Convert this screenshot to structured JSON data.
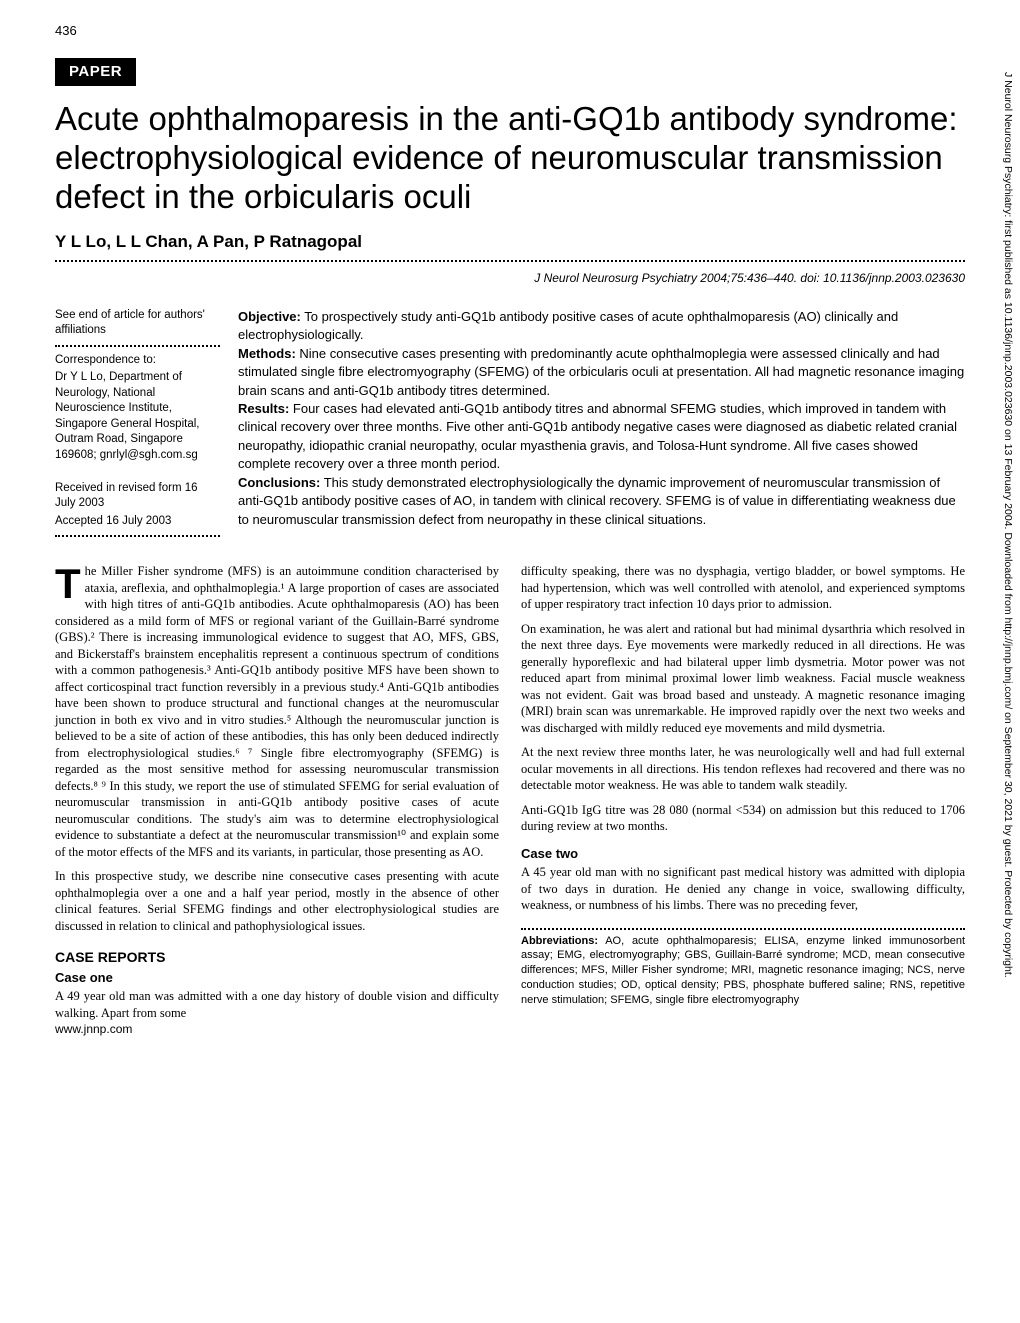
{
  "page_number": "436",
  "badge": "PAPER",
  "title": "Acute ophthalmoparesis in the anti-GQ1b antibody syndrome: electrophysiological evidence of neuromuscular transmission defect in the orbicularis oculi",
  "authors": "Y L Lo, L L Chan, A Pan, P Ratnagopal",
  "citation": "J Neurol Neurosurg Psychiatry 2004;75:436–440. doi: 10.1136/jnnp.2003.023630",
  "sidebar": {
    "affil_note": "See end of article for authors' affiliations",
    "correspondence_label": "Correspondence to:",
    "correspondence": "Dr Y L Lo, Department of Neurology, National Neuroscience Institute, Singapore General Hospital, Outram Road, Singapore 169608; gnrlyl@sgh.com.sg",
    "received": "Received in revised form 16 July 2003",
    "accepted": "Accepted 16 July 2003"
  },
  "abstract": {
    "objective_label": "Objective:",
    "objective": " To prospectively study anti-GQ1b antibody positive cases of acute ophthalmoparesis (AO) clinically and electrophysiologically.",
    "methods_label": "Methods:",
    "methods": " Nine consecutive cases presenting with predominantly acute ophthalmoplegia were assessed clinically and had stimulated single fibre electromyography (SFEMG) of the orbicularis oculi at presentation. All had magnetic resonance imaging brain scans and anti-GQ1b antibody titres determined.",
    "results_label": "Results:",
    "results": " Four cases had elevated anti-GQ1b antibody titres and abnormal SFEMG studies, which improved in tandem with clinical recovery over three months. Five other anti-GQ1b antibody negative cases were diagnosed as diabetic related cranial neuropathy, idiopathic cranial neuropathy, ocular myasthenia gravis, and Tolosa-Hunt syndrome. All five cases showed complete recovery over a three month period.",
    "conclusions_label": "Conclusions:",
    "conclusions": " This study demonstrated electrophysiologically the dynamic improvement of neuromuscular transmission of anti-GQ1b antibody positive cases of AO, in tandem with clinical recovery. SFEMG is of value in differentiating weakness due to neuromuscular transmission defect from neuropathy in these clinical situations."
  },
  "col_left": {
    "dropcap": "T",
    "intro_first": "he Miller Fisher syndrome (MFS) is an autoimmune condition characterised by ataxia, areflexia, and ophthalmoplegia.¹ A large proportion of cases are associated with high titres of anti-GQ1b antibodies. Acute ophthalmoparesis (AO) has been considered as a mild form of MFS or regional variant of the Guillain-Barré syndrome (GBS).² There is increasing immunological evidence to suggest that AO, MFS, GBS, and Bickerstaff's brainstem encephalitis represent a continuous spectrum of conditions with a common pathogenesis.³ Anti-GQ1b antibody positive MFS have been shown to affect corticospinal tract function reversibly in a previous study.⁴ Anti-GQ1b antibodies have been shown to produce structural and functional changes at the neuromuscular junction in both ex vivo and in vitro studies.⁵ Although the neuromuscular junction is believed to be a site of action of these antibodies, this has only been deduced indirectly from electrophysiological studies.⁶ ⁷ Single fibre electromyography (SFEMG) is regarded as the most sensitive method for assessing neuromuscular transmission defects.⁸ ⁹ In this study, we report the use of stimulated SFEMG for serial evaluation of neuromuscular transmission in anti-GQ1b antibody positive cases of acute neuromuscular conditions. The study's aim was to determine electrophysiological evidence to substantiate a defect at the neuromuscular transmission¹⁰ and explain some of the motor effects of the MFS and its variants, in particular, those presenting as AO.",
    "intro_p2": "In this prospective study, we describe nine consecutive cases presenting with acute ophthalmoplegia over a one and a half year period, mostly in the absence of other clinical features. Serial SFEMG findings and other electrophysiological studies are discussed in relation to clinical and pathophysiological issues.",
    "case_reports_heading": "CASE REPORTS",
    "case_one_heading": "Case one",
    "case_one_p1": "A 49 year old man was admitted with a one day history of double vision and difficulty walking. Apart from some"
  },
  "col_right": {
    "p1": "difficulty speaking, there was no dysphagia, vertigo bladder, or bowel symptoms. He had hypertension, which was well controlled with atenolol, and experienced symptoms of upper respiratory tract infection 10 days prior to admission.",
    "p2": "On examination, he was alert and rational but had minimal dysarthria which resolved in the next three days. Eye movements were markedly reduced in all directions. He was generally hyporeflexic and had bilateral upper limb dysmetria. Motor power was not reduced apart from minimal proximal lower limb weakness. Facial muscle weakness was not evident. Gait was broad based and unsteady. A magnetic resonance imaging (MRI) brain scan was unremarkable. He improved rapidly over the next two weeks and was discharged with mildly reduced eye movements and mild dysmetria.",
    "p3": "At the next review three months later, he was neurologically well and had full external ocular movements in all directions. His tendon reflexes had recovered and there was no detectable motor weakness. He was able to tandem walk steadily.",
    "p4": "Anti-GQ1b IgG titre was 28 080 (normal <534) on admission but this reduced to 1706 during review at two months.",
    "case_two_heading": "Case two",
    "case_two_p1": "A 45 year old man with no significant past medical history was admitted with diplopia of two days in duration. He denied any change in voice, swallowing difficulty, weakness, or numbness of his limbs. There was no preceding fever,",
    "abbrev_label": "Abbreviations:",
    "abbrev_text": " AO, acute ophthalmoparesis; ELISA, enzyme linked immunosorbent assay; EMG, electromyography; GBS, Guillain-Barré syndrome; MCD, mean consecutive differences; MFS, Miller Fisher syndrome; MRI, magnetic resonance imaging; NCS, nerve conduction studies; OD, optical density; PBS, phosphate buffered saline; RNS, repetitive nerve stimulation; SFEMG, single fibre electromyography"
  },
  "footer_url": "www.jnnp.com",
  "vertical_note": "J Neurol Neurosurg Psychiatry: first published as 10.1136/jnnp.2003.023630 on 13 February 2004. Downloaded from http://jnnp.bmj.com/ on September 30, 2021 by guest. Protected by copyright."
}
